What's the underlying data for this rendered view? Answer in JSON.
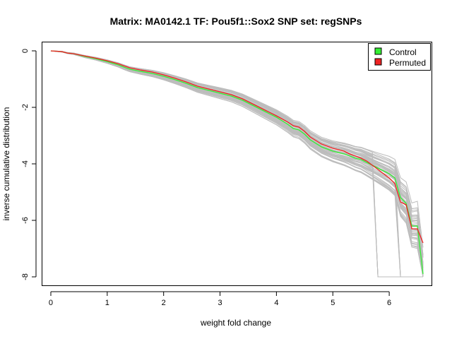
{
  "chart_data": {
    "type": "line",
    "title": "Matrix: MA0142.1 TF: Pou5f1::Sox2 SNP set: regSNPs",
    "xlabel": "weight fold change",
    "ylabel": "inverse cumulative distribution",
    "xlim": [
      -0.15,
      6.75
    ],
    "ylim": [
      -8.3,
      0.3
    ],
    "xticks": [
      0,
      1,
      2,
      3,
      4,
      5,
      6
    ],
    "yticks": [
      0,
      -2,
      -4,
      -6,
      -8
    ],
    "grid": false,
    "legend": {
      "position": "top-right",
      "entries": [
        "Control",
        "Permuted"
      ]
    },
    "colors": {
      "control": "#33ee33",
      "permuted": "#ee2222",
      "background_series": "#bdbdbd"
    },
    "series": [
      {
        "name": "Control",
        "x": [
          0.0,
          0.2,
          0.3,
          0.4,
          0.6,
          0.8,
          1.0,
          1.2,
          1.3,
          1.4,
          1.6,
          1.8,
          2.0,
          2.2,
          2.4,
          2.6,
          2.8,
          3.0,
          3.2,
          3.4,
          3.6,
          3.8,
          4.0,
          4.2,
          4.3,
          4.4,
          4.5,
          4.6,
          4.8,
          5.0,
          5.2,
          5.3,
          5.4,
          5.5,
          5.6,
          5.7,
          5.8,
          5.9,
          6.0,
          6.1,
          6.2,
          6.3,
          6.4,
          6.5,
          6.6
        ],
        "y": [
          0.0,
          -0.03,
          -0.08,
          -0.1,
          -0.2,
          -0.28,
          -0.38,
          -0.5,
          -0.58,
          -0.65,
          -0.73,
          -0.8,
          -0.9,
          -1.02,
          -1.15,
          -1.3,
          -1.4,
          -1.5,
          -1.6,
          -1.75,
          -1.95,
          -2.15,
          -2.35,
          -2.6,
          -2.75,
          -2.8,
          -2.95,
          -3.15,
          -3.4,
          -3.55,
          -3.65,
          -3.72,
          -3.8,
          -3.85,
          -3.95,
          -4.05,
          -4.15,
          -4.25,
          -4.35,
          -4.5,
          -5.2,
          -5.4,
          -6.2,
          -6.2,
          -7.9
        ]
      },
      {
        "name": "Permuted",
        "x": [
          0.0,
          0.2,
          0.3,
          0.4,
          0.6,
          0.8,
          1.0,
          1.2,
          1.3,
          1.4,
          1.6,
          1.8,
          2.0,
          2.2,
          2.4,
          2.6,
          2.8,
          3.0,
          3.2,
          3.4,
          3.6,
          3.8,
          4.0,
          4.2,
          4.3,
          4.4,
          4.5,
          4.6,
          4.8,
          5.0,
          5.2,
          5.3,
          5.4,
          5.5,
          5.6,
          5.7,
          5.8,
          5.9,
          6.0,
          6.1,
          6.2,
          6.3,
          6.4,
          6.5,
          6.6
        ],
        "y": [
          0.0,
          -0.03,
          -0.08,
          -0.1,
          -0.18,
          -0.26,
          -0.35,
          -0.46,
          -0.53,
          -0.6,
          -0.68,
          -0.75,
          -0.85,
          -0.97,
          -1.1,
          -1.25,
          -1.35,
          -1.45,
          -1.55,
          -1.7,
          -1.9,
          -2.1,
          -2.3,
          -2.52,
          -2.65,
          -2.7,
          -2.85,
          -3.05,
          -3.3,
          -3.45,
          -3.55,
          -3.65,
          -3.72,
          -3.8,
          -3.9,
          -4.05,
          -4.2,
          -4.35,
          -4.5,
          -4.7,
          -5.35,
          -5.45,
          -6.3,
          -6.3,
          -6.8
        ]
      }
    ]
  }
}
